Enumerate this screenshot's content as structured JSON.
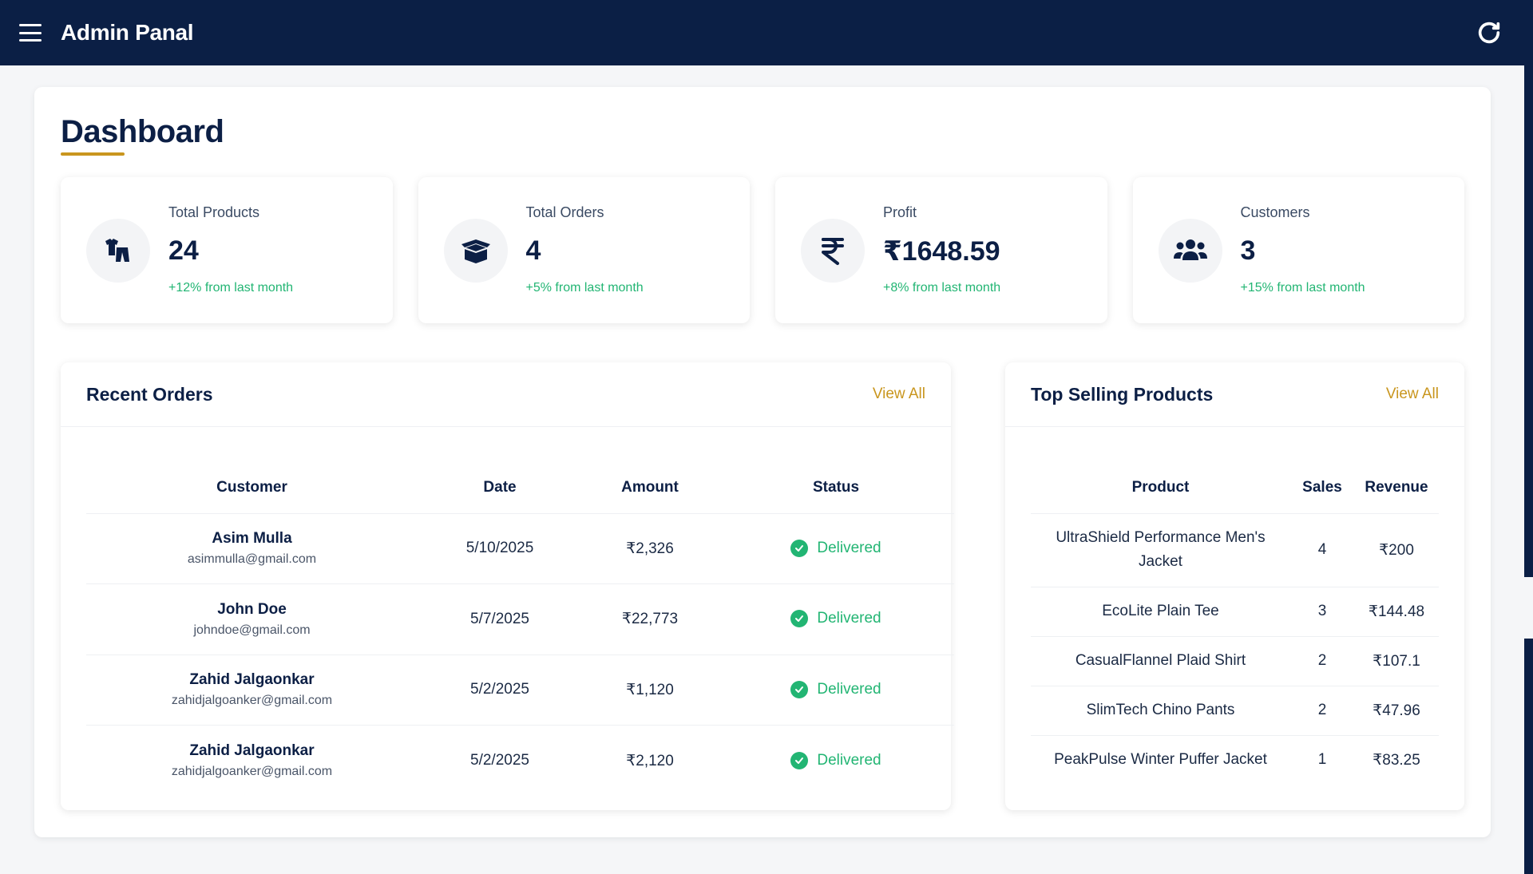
{
  "header": {
    "title": "Admin Panal"
  },
  "page": {
    "title": "Dashboard"
  },
  "stats": [
    {
      "label": "Total Products",
      "value": "24",
      "change": "+12% from last month",
      "icon": "clothes-icon"
    },
    {
      "label": "Total Orders",
      "value": "4",
      "change": "+5% from last month",
      "icon": "box-open-icon"
    },
    {
      "label": "Profit",
      "value": "₹1648.59",
      "change": "+8% from last month",
      "icon": "rupee-icon"
    },
    {
      "label": "Customers",
      "value": "3",
      "change": "+15% from last month",
      "icon": "users-icon"
    }
  ],
  "recent_orders": {
    "title": "Recent Orders",
    "view_all": "View All",
    "columns": [
      "Customer",
      "Date",
      "Amount",
      "Status"
    ],
    "rows": [
      {
        "name": "Asim Mulla",
        "email": "asimmulla@gmail.com",
        "date": "5/10/2025",
        "amount": "₹2,326",
        "status": "Delivered"
      },
      {
        "name": "John Doe",
        "email": "johndoe@gmail.com",
        "date": "5/7/2025",
        "amount": "₹22,773",
        "status": "Delivered"
      },
      {
        "name": "Zahid Jalgaonkar",
        "email": "zahidjalgoanker@gmail.com",
        "date": "5/2/2025",
        "amount": "₹1,120",
        "status": "Delivered"
      },
      {
        "name": "Zahid Jalgaonkar",
        "email": "zahidjalgoanker@gmail.com",
        "date": "5/2/2025",
        "amount": "₹2,120",
        "status": "Delivered"
      }
    ]
  },
  "top_products": {
    "title": "Top Selling Products",
    "view_all": "View All",
    "columns": [
      "Product",
      "Sales",
      "Revenue"
    ],
    "rows": [
      {
        "product": "UltraShield Performance Men's Jacket",
        "sales": "4",
        "revenue": "₹200"
      },
      {
        "product": "EcoLite Plain Tee",
        "sales": "3",
        "revenue": "₹144.48"
      },
      {
        "product": "CasualFlannel Plaid Shirt",
        "sales": "2",
        "revenue": "₹107.1"
      },
      {
        "product": "SlimTech Chino Pants",
        "sales": "2",
        "revenue": "₹47.96"
      },
      {
        "product": "PeakPulse Winter Puffer Jacket",
        "sales": "1",
        "revenue": "₹83.25"
      }
    ]
  },
  "colors": {
    "navy": "#0b1f45",
    "gold": "#c9961e",
    "green": "#22b573"
  }
}
